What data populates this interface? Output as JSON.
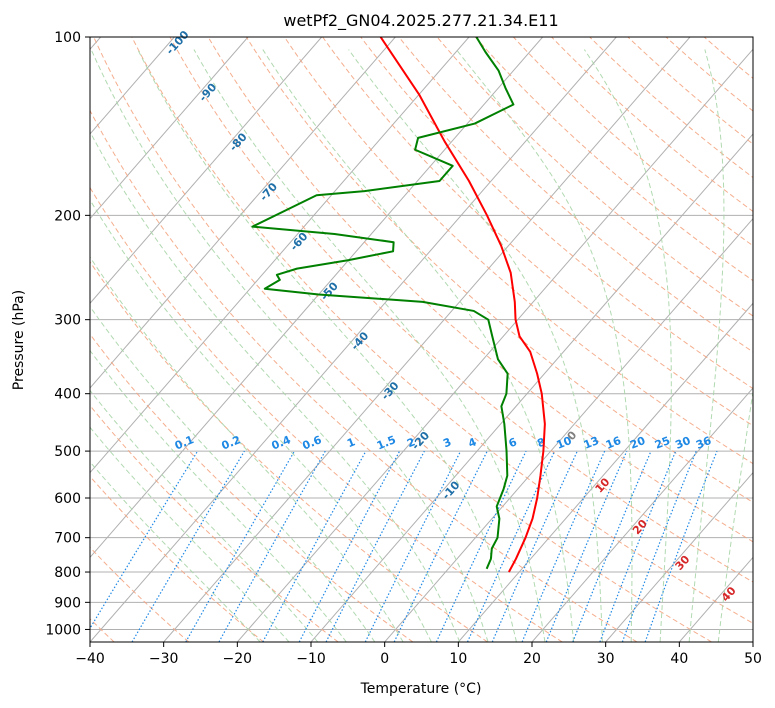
{
  "chart_data": {
    "type": "line",
    "diagram": "skew-t log-p",
    "title": "wetPf2_GN04.2025.277.21.34.E11",
    "xlabel": "Temperature (°C)",
    "ylabel": "Pressure (hPa)",
    "xlim": [
      -40,
      50
    ],
    "ylim": [
      1050,
      100
    ],
    "y_scale": "log",
    "grid": true,
    "x_ticks": [
      "−40",
      "−30",
      "−20",
      "−10",
      "0",
      "10",
      "20",
      "30",
      "40",
      "50"
    ],
    "y_ticks": [
      {
        "p": 100,
        "label": "100"
      },
      {
        "p": 200,
        "label": "200"
      },
      {
        "p": 300,
        "label": "300"
      },
      {
        "p": 400,
        "label": "400"
      },
      {
        "p": 500,
        "label": "500"
      },
      {
        "p": 600,
        "label": "600"
      },
      {
        "p": 700,
        "label": "700"
      },
      {
        "p": 800,
        "label": "800"
      },
      {
        "p": 900,
        "label": "900"
      },
      {
        "p": 1000,
        "label": "1000"
      }
    ],
    "isotherm_labels": [
      {
        "t": -100,
        "label": "-100"
      },
      {
        "t": -90,
        "label": "-90"
      },
      {
        "t": -80,
        "label": "-80"
      },
      {
        "t": -70,
        "label": "-70"
      },
      {
        "t": -60,
        "label": "-60"
      },
      {
        "t": -50,
        "label": "-50"
      },
      {
        "t": -40,
        "label": "-40"
      },
      {
        "t": -30,
        "label": "-30"
      },
      {
        "t": -20,
        "label": "-20"
      },
      {
        "t": -10,
        "label": "-10"
      },
      {
        "t": 0,
        "label": "0"
      },
      {
        "t": 10,
        "label": "10"
      },
      {
        "t": 20,
        "label": "20"
      },
      {
        "t": 30,
        "label": "30"
      },
      {
        "t": 40,
        "label": "40"
      }
    ],
    "mixing_ratio_labels": [
      "0.1",
      "0.2",
      "0.4",
      "0.6",
      "1",
      "1.5",
      "2",
      "3",
      "4",
      "6",
      "8",
      "10",
      "13",
      "16",
      "20",
      "25",
      "30",
      "36"
    ],
    "series": [
      {
        "color": "#ff0000",
        "points": [
          {
            "p": 800,
            "t": 8.6
          },
          {
            "p": 760,
            "t": 8.0
          },
          {
            "p": 700,
            "t": 6.8
          },
          {
            "p": 650,
            "t": 5.5
          },
          {
            "p": 600,
            "t": 3.7
          },
          {
            "p": 550,
            "t": 1.5
          },
          {
            "p": 500,
            "t": -1.0
          },
          {
            "p": 450,
            "t": -4.0
          },
          {
            "p": 400,
            "t": -8.0
          },
          {
            "p": 370,
            "t": -11.0
          },
          {
            "p": 340,
            "t": -14.5
          },
          {
            "p": 320,
            "t": -17.8
          },
          {
            "p": 300,
            "t": -20.3
          },
          {
            "p": 280,
            "t": -22.5
          },
          {
            "p": 250,
            "t": -26.5
          },
          {
            "p": 225,
            "t": -31.0
          },
          {
            "p": 200,
            "t": -36.5
          },
          {
            "p": 175,
            "t": -43.0
          },
          {
            "p": 150,
            "t": -51.0
          },
          {
            "p": 125,
            "t": -60.0
          },
          {
            "p": 100,
            "t": -72.0
          }
        ]
      },
      {
        "color": "#008000",
        "points": [
          {
            "p": 790,
            "t": 5.2
          },
          {
            "p": 760,
            "t": 4.6
          },
          {
            "p": 730,
            "t": 3.5
          },
          {
            "p": 700,
            "t": 3.0
          },
          {
            "p": 650,
            "t": 1.0
          },
          {
            "p": 620,
            "t": -0.8
          },
          {
            "p": 580,
            "t": -1.9
          },
          {
            "p": 550,
            "t": -3.0
          },
          {
            "p": 500,
            "t": -6.0
          },
          {
            "p": 450,
            "t": -9.5
          },
          {
            "p": 420,
            "t": -12.0
          },
          {
            "p": 400,
            "t": -12.8
          },
          {
            "p": 370,
            "t": -15.0
          },
          {
            "p": 350,
            "t": -18.0
          },
          {
            "p": 320,
            "t": -21.5
          },
          {
            "p": 300,
            "t": -24.0
          },
          {
            "p": 290,
            "t": -27.0
          },
          {
            "p": 280,
            "t": -35.0
          },
          {
            "p": 272,
            "t": -50.0
          },
          {
            "p": 266,
            "t": -58.0
          },
          {
            "p": 257,
            "t": -57.0
          },
          {
            "p": 252,
            "t": -58.0
          },
          {
            "p": 246,
            "t": -56.0
          },
          {
            "p": 238,
            "t": -50.0
          },
          {
            "p": 230,
            "t": -45.0
          },
          {
            "p": 222,
            "t": -46.0
          },
          {
            "p": 215,
            "t": -55.0
          },
          {
            "p": 209,
            "t": -67.0
          },
          {
            "p": 185,
            "t": -62.0
          },
          {
            "p": 182,
            "t": -56.0
          },
          {
            "p": 175,
            "t": -47.0
          },
          {
            "p": 165,
            "t": -47.0
          },
          {
            "p": 155,
            "t": -54.0
          },
          {
            "p": 148,
            "t": -55.0
          },
          {
            "p": 140,
            "t": -49.0
          },
          {
            "p": 130,
            "t": -46.0
          },
          {
            "p": 122,
            "t": -49.0
          },
          {
            "p": 114,
            "t": -52.0
          },
          {
            "p": 106,
            "t": -56.0
          },
          {
            "p": 100,
            "t": -59.0
          }
        ]
      }
    ],
    "colors": {
      "temperature": "#ff0000",
      "dewpoint": "#008000",
      "dry_adiabat": "#f4a582",
      "moist_adiabat": "#a8d5a8",
      "mixing_ratio": "#1e88e5",
      "isotherm_label_negative": "#1f6fa8",
      "isotherm_label_positive": "#d62728",
      "isotherm_label_zero": "#7f7f7f"
    }
  }
}
